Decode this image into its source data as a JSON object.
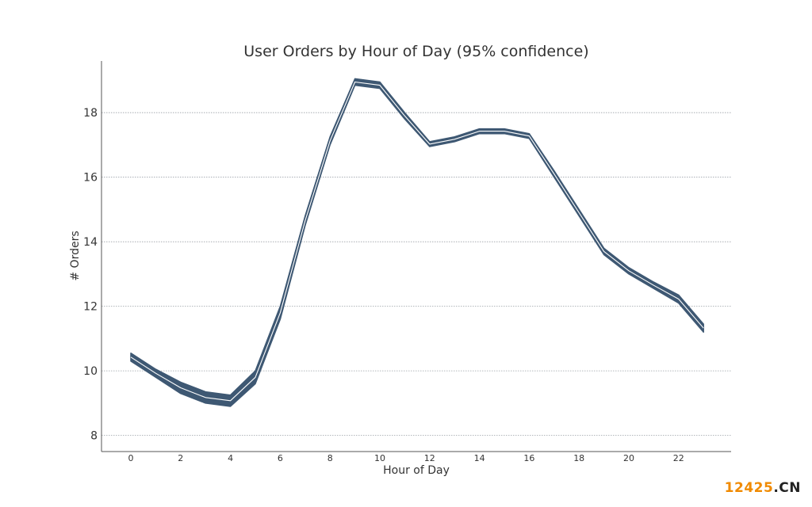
{
  "chart_data": {
    "type": "area",
    "title": "User Orders by Hour of Day (95% confidence)",
    "xlabel": "Hour of Day",
    "ylabel": "# Orders",
    "xlim": [
      -1,
      24
    ],
    "ylim": [
      7.5,
      19.6
    ],
    "xticks": [
      0,
      2,
      4,
      6,
      8,
      10,
      12,
      14,
      16,
      18,
      20,
      22
    ],
    "xtick_labels": [
      "0",
      "2",
      "4",
      "6",
      "8",
      "10",
      "12",
      "14",
      "16",
      "18",
      "20",
      "22"
    ],
    "yticks": [
      8,
      10,
      12,
      14,
      16,
      18
    ],
    "ytick_labels": [
      "8",
      "10",
      "12",
      "14",
      "16",
      "18"
    ],
    "grid": "horizontal",
    "x": [
      0,
      1,
      2,
      3,
      4,
      5,
      6,
      7,
      8,
      9,
      10,
      11,
      12,
      13,
      14,
      15,
      16,
      17,
      18,
      19,
      20,
      21,
      22,
      23
    ],
    "series": [
      {
        "lower": [
          10.3,
          9.8,
          9.3,
          9.0,
          8.9,
          9.6,
          11.6,
          14.5,
          17.0,
          18.85,
          18.75,
          17.8,
          16.95,
          17.1,
          17.35,
          17.35,
          17.2,
          16.0,
          14.8,
          13.6,
          13.0,
          12.55,
          12.1,
          11.2
        ],
        "upper": [
          10.55,
          10.05,
          9.65,
          9.35,
          9.25,
          10.0,
          12.0,
          14.8,
          17.25,
          19.05,
          18.95,
          18.0,
          17.1,
          17.25,
          17.5,
          17.5,
          17.35,
          16.2,
          15.0,
          13.8,
          13.2,
          12.75,
          12.35,
          11.45
        ],
        "color": "#3e5873"
      }
    ]
  },
  "watermark": {
    "part1": "12425",
    "part2": ".CN",
    "color1": "#f08a00",
    "color2": "#222222"
  }
}
